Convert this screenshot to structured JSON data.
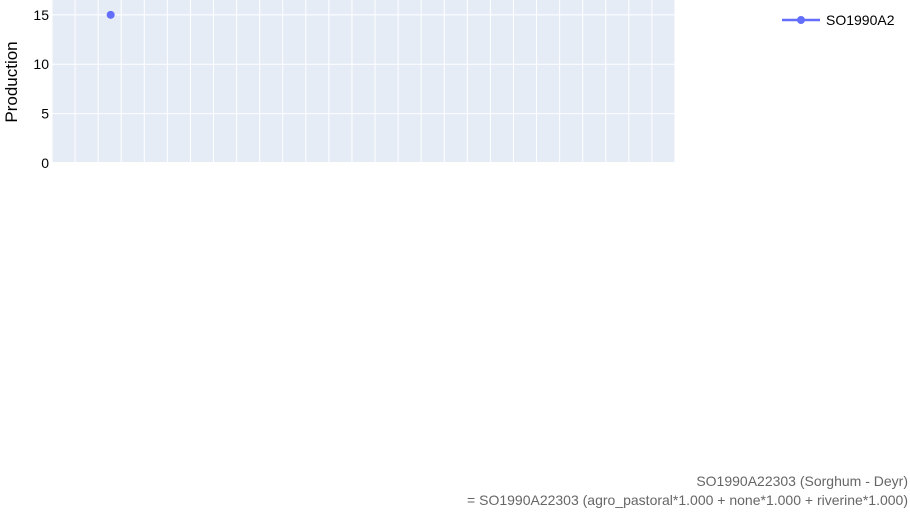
{
  "chart_data": {
    "type": "line",
    "title": "",
    "ylabel": "Production",
    "xlabel": "",
    "ylim": [
      0,
      16.5
    ],
    "yticks": [
      0,
      5,
      10,
      15
    ],
    "grid": true,
    "legend_position": "top-right",
    "series": [
      {
        "name": "SO1990A2",
        "color": "#636efa",
        "x": [
          3
        ],
        "y": [
          15
        ]
      }
    ],
    "x_category_count": 27,
    "annotation": {
      "line1": "SO1990A22303 (Sorghum - Deyr)",
      "line2": "= SO1990A22303 (agro_pastoral*1.000 + none*1.000 + riverine*1.000)"
    }
  }
}
